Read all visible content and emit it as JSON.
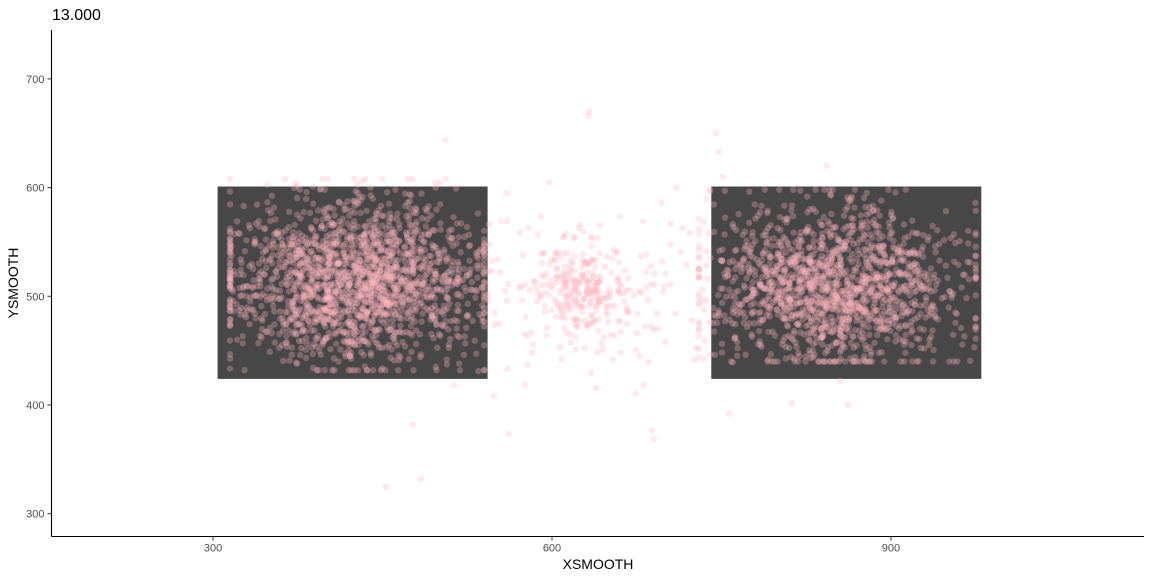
{
  "chart_data": {
    "type": "scatter",
    "title": "13.000",
    "xlabel": "XSMOOTH",
    "ylabel": "YSMOOTH",
    "xlim": [
      157,
      1124
    ],
    "ylim": [
      279,
      745
    ],
    "x_ticks": [
      300,
      600,
      900
    ],
    "y_ticks": [
      300,
      400,
      500,
      600,
      700
    ],
    "grid": false,
    "legend": "none",
    "background_color": "#ffffff",
    "point_color": "#ffb6c1",
    "rect_color": "#474747",
    "rectangles": [
      {
        "xmin": 304,
        "xmax": 543,
        "ymin": 424,
        "ymax": 601
      },
      {
        "xmin": 741,
        "xmax": 980,
        "ymin": 424,
        "ymax": 601
      }
    ],
    "clusters": [
      {
        "cx": 425,
        "cy": 515,
        "sx": 55,
        "sy": 38,
        "n": 1800,
        "xmin": 315,
        "xmax": 540,
        "ymin": 432,
        "ymax": 608
      },
      {
        "cx": 850,
        "cy": 510,
        "sx": 55,
        "sy": 35,
        "n": 1500,
        "xmin": 730,
        "xmax": 975,
        "ymin": 440,
        "ymax": 598
      },
      {
        "cx": 630,
        "cy": 505,
        "sx": 20,
        "sy": 18,
        "n": 220,
        "xmin": 560,
        "xmax": 700,
        "ymin": 460,
        "ymax": 560
      },
      {
        "cx": 630,
        "cy": 505,
        "sx": 75,
        "sy": 45,
        "n": 180,
        "xmin": 500,
        "xmax": 760,
        "ymin": 360,
        "ymax": 660
      }
    ],
    "outliers": [
      {
        "x": 633,
        "y": 670
      },
      {
        "x": 632,
        "y": 666
      },
      {
        "x": 506,
        "y": 644
      },
      {
        "x": 453,
        "y": 325
      },
      {
        "x": 484,
        "y": 332
      },
      {
        "x": 477,
        "y": 382
      },
      {
        "x": 562,
        "y": 373
      },
      {
        "x": 690,
        "y": 369
      },
      {
        "x": 812,
        "y": 402
      },
      {
        "x": 862,
        "y": 400
      },
      {
        "x": 745,
        "y": 650
      },
      {
        "x": 748,
        "y": 633
      },
      {
        "x": 751,
        "y": 610
      },
      {
        "x": 843,
        "y": 620
      },
      {
        "x": 513,
        "y": 418
      },
      {
        "x": 757,
        "y": 392
      },
      {
        "x": 855,
        "y": 422
      }
    ]
  }
}
